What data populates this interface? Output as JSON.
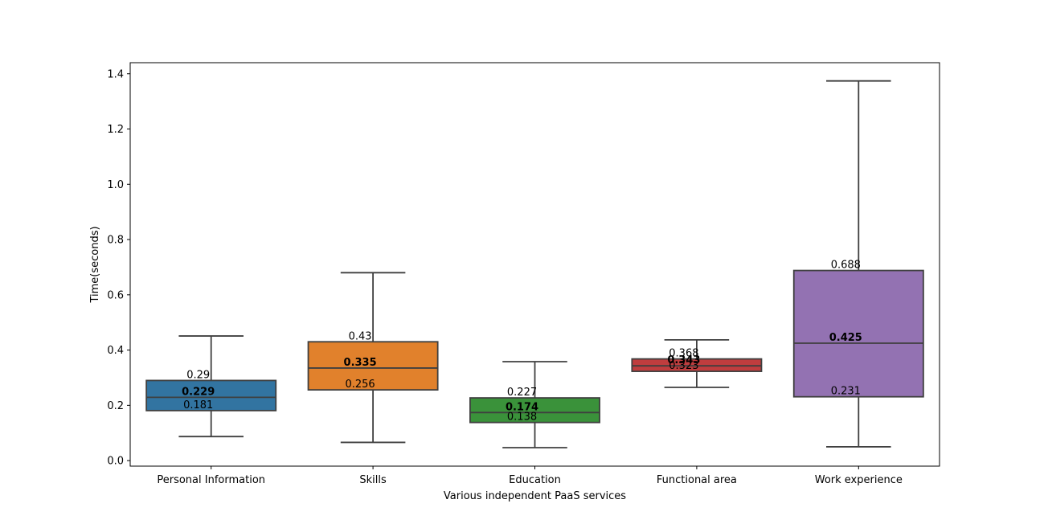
{
  "chart_data": {
    "type": "box",
    "xlabel": "Various independent PaaS services",
    "ylabel": "Time(seconds)",
    "ylim": [
      -0.02,
      1.44
    ],
    "y_ticks": [
      0.0,
      0.2,
      0.4,
      0.6,
      0.8,
      1.0,
      1.2,
      1.4
    ],
    "y_tick_labels": [
      "0.0",
      "0.2",
      "0.4",
      "0.6",
      "0.8",
      "1.0",
      "1.2",
      "1.4"
    ],
    "grid": false,
    "categories": [
      "Personal Information",
      "Skills",
      "Education",
      "Functional area",
      "Work experience"
    ],
    "boxes": [
      {
        "category": "Personal Information",
        "whisker_low": 0.087,
        "q1": 0.181,
        "median": 0.229,
        "q3": 0.29,
        "whisker_high": 0.451,
        "labels": {
          "q1": "0.181",
          "median": "0.229",
          "q3": "0.29"
        },
        "color": "#3274a1"
      },
      {
        "category": "Skills",
        "whisker_low": 0.066,
        "q1": 0.256,
        "median": 0.335,
        "q3": 0.43,
        "whisker_high": 0.68,
        "labels": {
          "q1": "0.256",
          "median": "0.335",
          "q3": "0.43"
        },
        "color": "#e1812c"
      },
      {
        "category": "Education",
        "whisker_low": 0.047,
        "q1": 0.138,
        "median": 0.174,
        "q3": 0.227,
        "whisker_high": 0.358,
        "labels": {
          "q1": "0.138",
          "median": "0.174",
          "q3": "0.227"
        },
        "color": "#3a923a"
      },
      {
        "category": "Functional area",
        "whisker_low": 0.265,
        "q1": 0.323,
        "median": 0.343,
        "q3": 0.368,
        "whisker_high": 0.437,
        "labels": {
          "q1": "0.323",
          "median": "0.343",
          "q3": "0.368"
        },
        "color": "#c03d3e"
      },
      {
        "category": "Work experience",
        "whisker_low": 0.05,
        "q1": 0.231,
        "median": 0.425,
        "q3": 0.688,
        "whisker_high": 1.374,
        "labels": {
          "q1": "0.231",
          "median": "0.425",
          "q3": "0.688"
        },
        "color": "#9372b2"
      }
    ],
    "line_color": "#3f3f3f"
  }
}
